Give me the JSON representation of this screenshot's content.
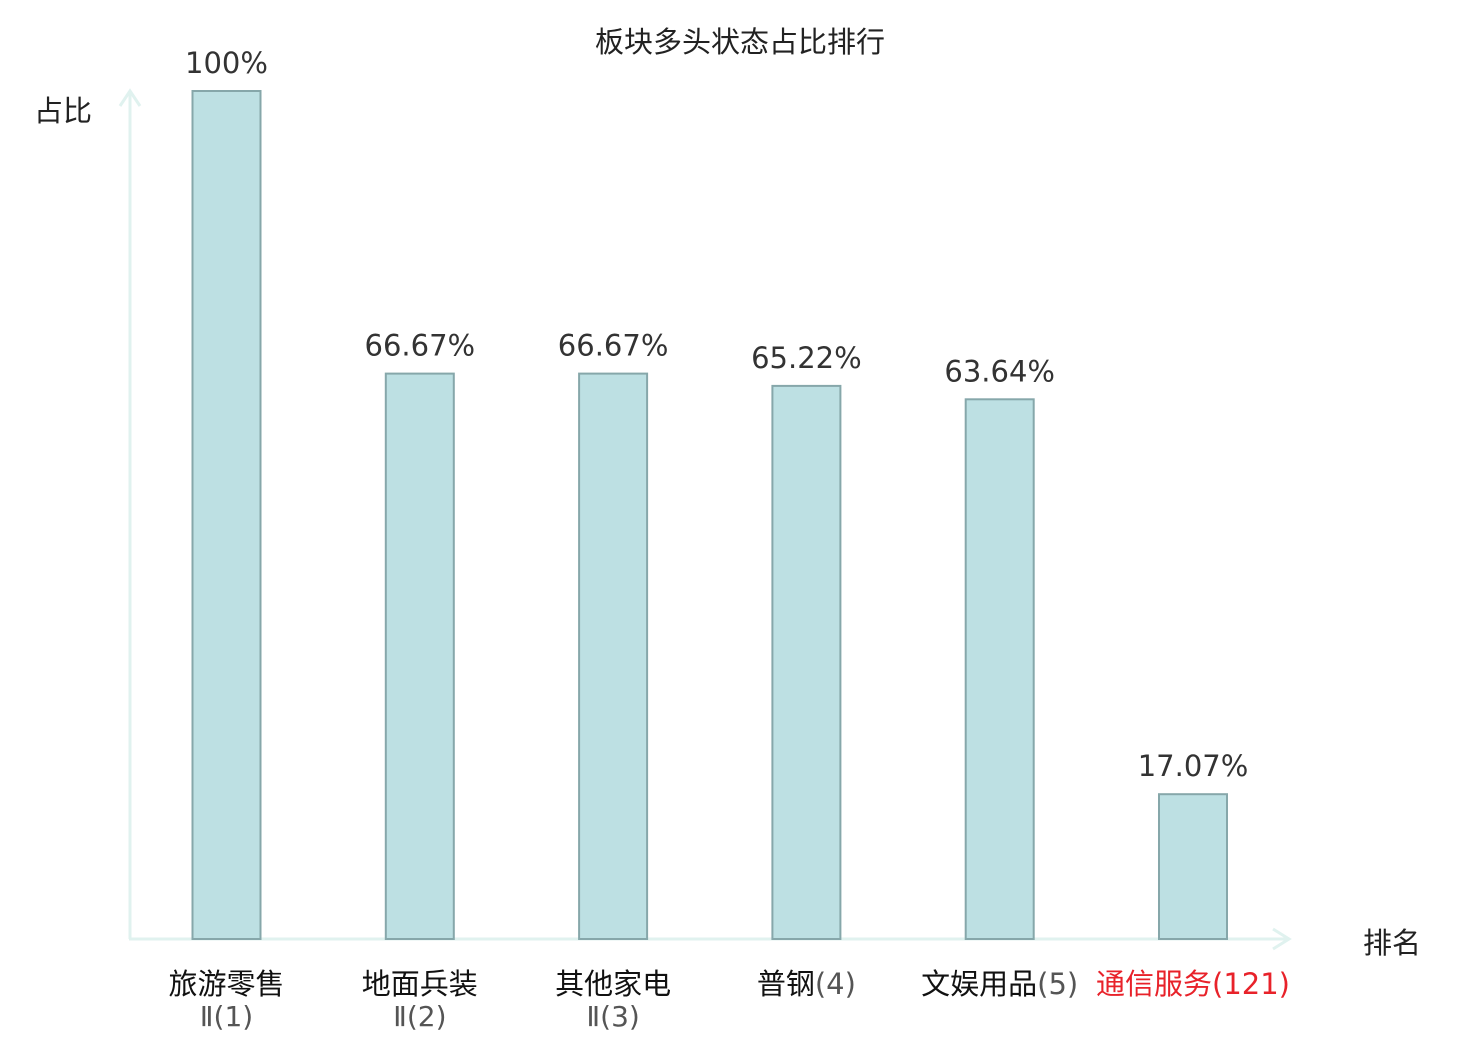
{
  "chart_data": {
    "type": "bar",
    "title": "板块多头状态占比排行",
    "ylabel": "占比",
    "xlabel": "排名",
    "ylim": [
      0,
      100
    ],
    "grid": false,
    "categories": [
      {
        "name": "旅游零售",
        "sub": "Ⅱ",
        "rank": "(1)",
        "highlight": false
      },
      {
        "name": "地面兵装",
        "sub": "Ⅱ",
        "rank": "(2)",
        "highlight": false
      },
      {
        "name": "其他家电",
        "sub": "Ⅱ",
        "rank": "(3)",
        "highlight": false
      },
      {
        "name": "普钢",
        "sub": "",
        "rank": "(4)",
        "highlight": false
      },
      {
        "name": "文娱用品",
        "sub": "",
        "rank": "(5)",
        "highlight": false
      },
      {
        "name": "通信服务",
        "sub": "",
        "rank": "(121)",
        "highlight": true
      }
    ],
    "values": [
      100,
      66.67,
      66.67,
      65.22,
      63.64,
      17.07
    ],
    "value_labels": [
      "100%",
      "66.67%",
      "66.67%",
      "65.22%",
      "63.64%",
      "17.07%"
    ]
  },
  "colors": {
    "bar_fill": "#bde0e3",
    "bar_stroke": "#86a7aa",
    "axis": "#e0f2ef",
    "text": "#333333",
    "rank_text": "#555555",
    "highlight": "#e8222a"
  }
}
